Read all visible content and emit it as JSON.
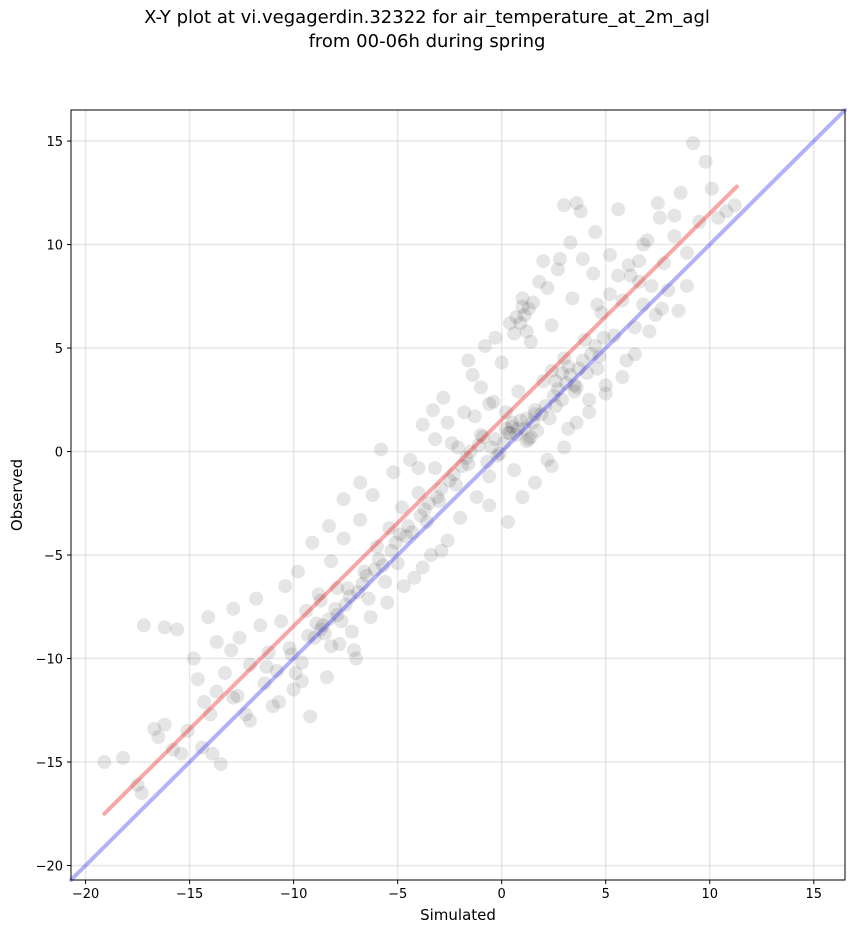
{
  "title_line1": "X-Y plot at vi.vegagerdin.32322 for air_temperature_at_2m_agl",
  "title_line2": "from 00-06h during spring",
  "chart_data": {
    "type": "scatter",
    "title": "X-Y plot at vi.vegagerdin.32322 for air_temperature_at_2m_agl from 00-06h during spring",
    "xlabel": "Simulated",
    "ylabel": "Observed",
    "xlim": [
      -20.7,
      16.5
    ],
    "ylim": [
      -20.7,
      16.5
    ],
    "xticks": [
      -20,
      -15,
      -10,
      -5,
      0,
      5,
      10,
      15
    ],
    "yticks": [
      -20,
      -15,
      -10,
      -5,
      0,
      5,
      10,
      15
    ],
    "xtick_labels": [
      "−20",
      "−15",
      "−10",
      "−5",
      "0",
      "5",
      "10",
      "15"
    ],
    "ytick_labels": [
      "−20",
      "−15",
      "−10",
      "−5",
      "0",
      "5",
      "10",
      "15"
    ],
    "grid": true,
    "marker_color": "#000000",
    "marker_alpha": 0.1,
    "points": [
      [
        -19.1,
        -15.0
      ],
      [
        -18.2,
        -14.8
      ],
      [
        -17.5,
        -16.1
      ],
      [
        -17.3,
        -16.5
      ],
      [
        -17.2,
        -8.4
      ],
      [
        -16.7,
        -13.4
      ],
      [
        -16.5,
        -13.8
      ],
      [
        -16.2,
        -8.5
      ],
      [
        -15.6,
        -8.6
      ],
      [
        -15.4,
        -14.6
      ],
      [
        -15.1,
        -13.5
      ],
      [
        -14.8,
        -10.0
      ],
      [
        -14.6,
        -11.0
      ],
      [
        -14.4,
        -14.3
      ],
      [
        -14.1,
        -8.0
      ],
      [
        -14.0,
        -12.7
      ],
      [
        -13.9,
        -14.6
      ],
      [
        -13.7,
        -11.6
      ],
      [
        -13.5,
        -15.1
      ],
      [
        -13.3,
        -10.7
      ],
      [
        -13.0,
        -9.6
      ],
      [
        -12.9,
        -7.6
      ],
      [
        -12.7,
        -11.8
      ],
      [
        -12.6,
        -9.0
      ],
      [
        -12.3,
        -12.7
      ],
      [
        -12.1,
        -10.3
      ],
      [
        -11.8,
        -7.1
      ],
      [
        -11.6,
        -8.4
      ],
      [
        -11.4,
        -11.2
      ],
      [
        -11.2,
        -9.7
      ],
      [
        -11.0,
        -12.3
      ],
      [
        -10.8,
        -10.6
      ],
      [
        -10.6,
        -8.2
      ],
      [
        -10.4,
        -6.5
      ],
      [
        -10.2,
        -9.5
      ],
      [
        -10.0,
        -11.5
      ],
      [
        -9.8,
        -5.8
      ],
      [
        -9.6,
        -10.2
      ],
      [
        -9.4,
        -7.7
      ],
      [
        -9.2,
        -12.8
      ],
      [
        -9.0,
        -9.0
      ],
      [
        -8.8,
        -6.9
      ],
      [
        -8.6,
        -8.4
      ],
      [
        -8.4,
        -10.9
      ],
      [
        -8.2,
        -5.3
      ],
      [
        -8.0,
        -7.6
      ],
      [
        -7.8,
        -9.3
      ],
      [
        -7.6,
        -4.2
      ],
      [
        -7.4,
        -6.6
      ],
      [
        -7.2,
        -8.7
      ],
      [
        -7.0,
        -10.0
      ],
      [
        -6.8,
        -3.3
      ],
      [
        -6.6,
        -5.8
      ],
      [
        -6.4,
        -7.1
      ],
      [
        -6.2,
        -2.1
      ],
      [
        -6.0,
        -4.6
      ],
      [
        -5.8,
        0.1
      ],
      [
        -5.6,
        -6.3
      ],
      [
        -5.4,
        -3.7
      ],
      [
        -5.2,
        -1.0
      ],
      [
        -5.0,
        -5.4
      ],
      [
        -4.8,
        -2.7
      ],
      [
        -4.6,
        -4.1
      ],
      [
        -4.4,
        -0.4
      ],
      [
        -4.2,
        -6.1
      ],
      [
        -4.0,
        -2.0
      ],
      [
        -3.8,
        1.3
      ],
      [
        -3.6,
        -3.4
      ],
      [
        -3.4,
        -5.0
      ],
      [
        -3.2,
        -0.8
      ],
      [
        -3.0,
        -2.4
      ],
      [
        -2.8,
        2.6
      ],
      [
        -2.6,
        -4.3
      ],
      [
        -2.4,
        0.4
      ],
      [
        -2.2,
        -1.6
      ],
      [
        -2.0,
        -3.2
      ],
      [
        -1.8,
        1.9
      ],
      [
        -1.6,
        -0.6
      ],
      [
        -1.4,
        3.7
      ],
      [
        -1.2,
        -2.2
      ],
      [
        -1.0,
        0.8
      ],
      [
        -0.8,
        5.1
      ],
      [
        -0.6,
        -1.2
      ],
      [
        -0.4,
        2.4
      ],
      [
        -0.2,
        -0.2
      ],
      [
        0.0,
        4.3
      ],
      [
        0.2,
        1.1
      ],
      [
        0.4,
        6.2
      ],
      [
        0.6,
        -0.9
      ],
      [
        0.8,
        2.9
      ],
      [
        1.0,
        7.0
      ],
      [
        1.2,
        0.5
      ],
      [
        1.4,
        5.3
      ],
      [
        1.6,
        1.8
      ],
      [
        1.8,
        8.2
      ],
      [
        2.0,
        3.4
      ],
      [
        2.2,
        -0.4
      ],
      [
        2.4,
        6.1
      ],
      [
        2.6,
        2.2
      ],
      [
        2.8,
        9.3
      ],
      [
        3.0,
        4.5
      ],
      [
        3.2,
        1.1
      ],
      [
        3.4,
        7.4
      ],
      [
        3.6,
        3.1
      ],
      [
        3.8,
        11.6
      ],
      [
        4.0,
        5.4
      ],
      [
        4.2,
        2.5
      ],
      [
        4.4,
        8.6
      ],
      [
        4.6,
        4.0
      ],
      [
        4.8,
        6.7
      ],
      [
        5.0,
        3.2
      ],
      [
        5.2,
        9.5
      ],
      [
        5.4,
        5.6
      ],
      [
        5.6,
        11.7
      ],
      [
        5.8,
        7.3
      ],
      [
        6.0,
        4.4
      ],
      [
        6.2,
        8.5
      ],
      [
        6.4,
        6.0
      ],
      [
        6.6,
        9.2
      ],
      [
        6.8,
        7.1
      ],
      [
        7.0,
        10.2
      ],
      [
        7.2,
        8.0
      ],
      [
        7.4,
        6.6
      ],
      [
        7.6,
        11.3
      ],
      [
        7.8,
        9.1
      ],
      [
        8.0,
        7.8
      ],
      [
        8.3,
        10.4
      ],
      [
        8.6,
        12.5
      ],
      [
        8.9,
        9.6
      ],
      [
        9.2,
        14.9
      ],
      [
        9.5,
        11.1
      ],
      [
        9.8,
        14.0
      ],
      [
        10.1,
        12.7
      ],
      [
        10.4,
        11.3
      ],
      [
        10.8,
        11.6
      ],
      [
        11.2,
        11.9
      ],
      [
        -8.9,
        -8.3
      ],
      [
        -8.7,
        -8.6
      ],
      [
        -8.5,
        -8.8
      ],
      [
        -8.3,
        -8.1
      ],
      [
        -7.9,
        -7.9
      ],
      [
        -7.7,
        -8.2
      ],
      [
        -7.5,
        -7.4
      ],
      [
        -7.3,
        -7.0
      ],
      [
        -6.9,
        -6.8
      ],
      [
        -6.7,
        -6.4
      ],
      [
        -6.5,
        -6.0
      ],
      [
        -6.1,
        -5.7
      ],
      [
        -5.9,
        -5.2
      ],
      [
        -5.7,
        -5.5
      ],
      [
        -5.3,
        -4.8
      ],
      [
        -5.1,
        -4.4
      ],
      [
        -4.9,
        -4.0
      ],
      [
        -4.5,
        -3.6
      ],
      [
        -4.3,
        -3.9
      ],
      [
        -3.9,
        -3.1
      ],
      [
        -3.7,
        -2.8
      ],
      [
        -3.5,
        -2.5
      ],
      [
        -3.1,
        -2.2
      ],
      [
        -2.9,
        -1.8
      ],
      [
        -2.5,
        -1.4
      ],
      [
        -2.3,
        -1.1
      ],
      [
        -1.9,
        -0.7
      ],
      [
        -1.7,
        -0.3
      ],
      [
        -1.5,
        0.0
      ],
      [
        -1.1,
        0.3
      ],
      [
        -0.9,
        0.7
      ],
      [
        -0.7,
        -0.5
      ],
      [
        -0.5,
        0.2
      ],
      [
        -0.3,
        0.6
      ],
      [
        -0.1,
        -0.1
      ],
      [
        0.1,
        0.4
      ],
      [
        0.3,
        0.9
      ],
      [
        0.5,
        1.2
      ],
      [
        0.7,
        0.8
      ],
      [
        0.9,
        1.5
      ],
      [
        1.1,
        1.1
      ],
      [
        1.3,
        0.6
      ],
      [
        1.5,
        1.4
      ],
      [
        1.7,
        1.0
      ],
      [
        1.9,
        1.8
      ],
      [
        2.1,
        2.2
      ],
      [
        2.3,
        1.6
      ],
      [
        2.5,
        2.7
      ],
      [
        2.7,
        3.0
      ],
      [
        2.9,
        2.5
      ],
      [
        3.1,
        3.3
      ],
      [
        3.3,
        3.7
      ],
      [
        3.5,
        3.2
      ],
      [
        3.7,
        4.0
      ],
      [
        3.9,
        4.4
      ],
      [
        4.1,
        3.8
      ],
      [
        4.3,
        4.7
      ],
      [
        4.5,
        5.1
      ],
      [
        4.7,
        4.6
      ],
      [
        4.9,
        5.5
      ],
      [
        0.9,
        6.2
      ],
      [
        1.1,
        6.6
      ],
      [
        1.3,
        6.9
      ],
      [
        0.7,
        6.5
      ],
      [
        1.5,
        7.2
      ],
      [
        1.2,
        5.8
      ],
      [
        0.6,
        5.7
      ],
      [
        1.0,
        7.4
      ],
      [
        0.5,
        1.4
      ],
      [
        0.8,
        1.1
      ],
      [
        1.2,
        1.6
      ],
      [
        0.4,
        0.9
      ],
      [
        1.4,
        0.7
      ],
      [
        0.2,
        1.9
      ],
      [
        1.6,
        2.0
      ],
      [
        2.6,
        3.4
      ],
      [
        2.9,
        3.8
      ],
      [
        3.2,
        4.1
      ],
      [
        2.4,
        3.9
      ],
      [
        3.5,
        2.9
      ],
      [
        -8.7,
        -7.2
      ],
      [
        -8.2,
        -9.4
      ],
      [
        -9.3,
        -8.9
      ],
      [
        -7.9,
        -6.6
      ],
      [
        -10.1,
        -9.8
      ],
      [
        -9.6,
        -11.1
      ],
      [
        -11.3,
        -10.4
      ],
      [
        -3.2,
        0.6
      ],
      [
        -2.6,
        1.4
      ],
      [
        -2.1,
        0.2
      ],
      [
        -1.3,
        1.7
      ],
      [
        -0.6,
        2.3
      ],
      [
        5.6,
        8.5
      ],
      [
        6.1,
        9.0
      ],
      [
        6.6,
        8.2
      ],
      [
        5.2,
        7.6
      ],
      [
        4.6,
        7.1
      ],
      [
        3.9,
        9.3
      ],
      [
        3.3,
        10.1
      ],
      [
        2.7,
        8.8
      ],
      [
        -16.2,
        -13.2
      ],
      [
        -15.8,
        -14.4
      ],
      [
        -12.9,
        -11.9
      ],
      [
        -12.1,
        -13.0
      ],
      [
        -10.7,
        -12.1
      ],
      [
        -9.9,
        -10.7
      ],
      [
        -13.7,
        -9.2
      ],
      [
        -14.3,
        -12.1
      ],
      [
        0.3,
        -3.4
      ],
      [
        -0.6,
        -2.6
      ],
      [
        1.0,
        -2.2
      ],
      [
        1.6,
        -1.5
      ],
      [
        2.4,
        -0.7
      ],
      [
        3.0,
        0.2
      ],
      [
        3.6,
        1.4
      ],
      [
        4.2,
        1.9
      ],
      [
        5.0,
        2.8
      ],
      [
        5.8,
        3.6
      ],
      [
        6.4,
        4.7
      ],
      [
        7.1,
        5.8
      ],
      [
        7.7,
        6.9
      ],
      [
        8.5,
        6.8
      ],
      [
        8.9,
        8.0
      ],
      [
        -2.9,
        -4.8
      ],
      [
        -3.8,
        -5.6
      ],
      [
        -4.7,
        -6.5
      ],
      [
        -5.5,
        -7.3
      ],
      [
        -6.3,
        -8.0
      ],
      [
        -7.1,
        -9.6
      ],
      [
        -6.8,
        -1.5
      ],
      [
        -7.6,
        -2.3
      ],
      [
        -8.3,
        -3.6
      ],
      [
        -9.1,
        -4.4
      ],
      [
        -4.0,
        -0.8
      ],
      [
        -3.3,
        2.0
      ],
      [
        -1.6,
        4.4
      ],
      [
        -0.3,
        5.5
      ],
      [
        -1.0,
        3.1
      ],
      [
        2.2,
        7.9
      ],
      [
        2.0,
        9.2
      ],
      [
        3.0,
        11.9
      ],
      [
        3.6,
        12.0
      ],
      [
        4.5,
        10.6
      ],
      [
        6.8,
        10.0
      ],
      [
        7.5,
        12.0
      ],
      [
        8.3,
        11.4
      ]
    ],
    "fit_line": {
      "color": "#ee2222",
      "alpha": 0.4,
      "points": [
        [
          -19.1,
          -17.5
        ],
        [
          11.3,
          12.8
        ]
      ]
    },
    "identity_line": {
      "color": "#2222ee",
      "alpha": 0.35,
      "points": [
        [
          -20.7,
          -20.7
        ],
        [
          16.5,
          16.5
        ]
      ]
    }
  }
}
